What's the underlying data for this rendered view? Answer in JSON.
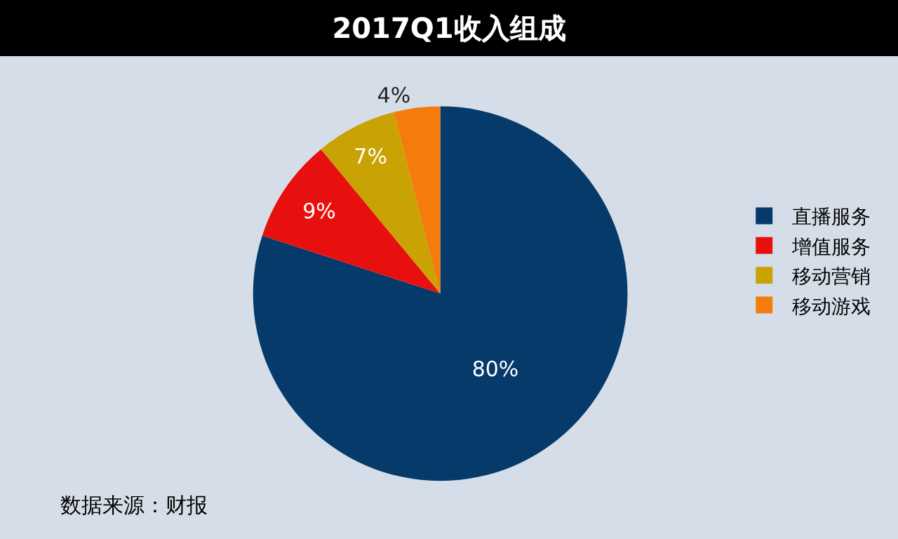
{
  "chart_data": {
    "type": "pie",
    "title": "2017Q1收入组成",
    "categories": [
      "直播服务",
      "增值服务",
      "移动营销",
      "移动游戏"
    ],
    "values": [
      80,
      9,
      7,
      4
    ],
    "value_labels": [
      "80%",
      "9%",
      "7%",
      "4%"
    ],
    "colors": [
      "#053a6b",
      "#e8100f",
      "#c9a204",
      "#f57c0c"
    ],
    "legend": "right",
    "annotations": [
      "数据来源：财报"
    ]
  }
}
